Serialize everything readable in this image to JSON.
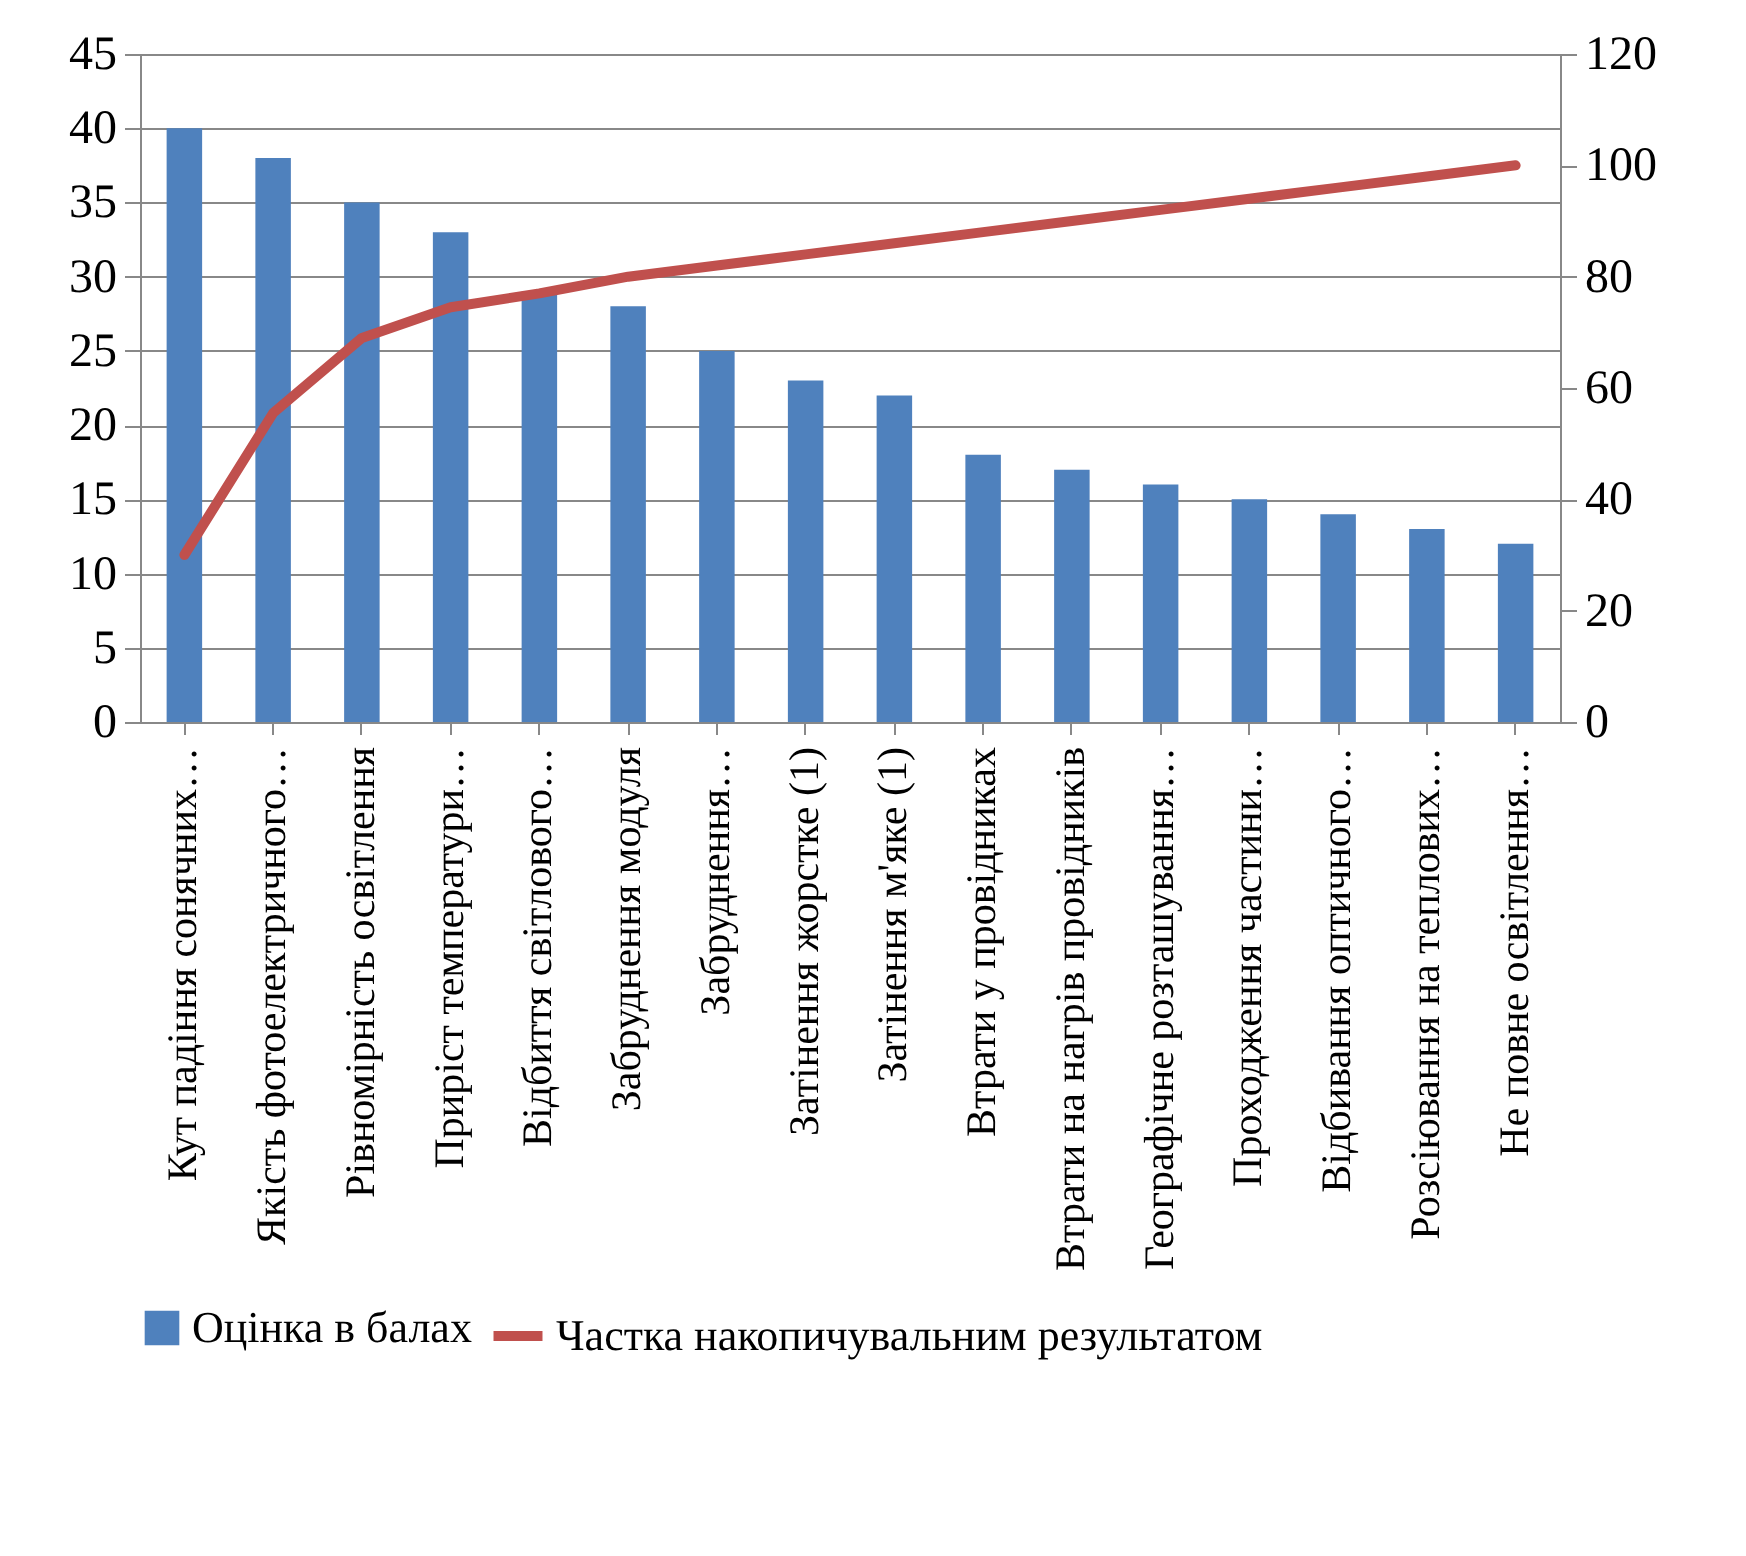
{
  "chart_data": {
    "type": "bar",
    "categories": [
      "Кут падіння сонячних…",
      "Якість фотоелектричного…",
      "Рівномірність освітлення",
      "Приріст температури…",
      "Відбиття світлового…",
      "Забруднення модуля",
      "Забруднення…",
      "Затінення жорстке (1)",
      "Затінення м'яке (1)",
      "Втрати у провідниках",
      "Втрати на нагрів провідників",
      "Географічне розташування…",
      "Проходження частини…",
      "Відбивання оптичного…",
      "Розсіювання на теплових…",
      "Не повне освітлення…"
    ],
    "series": [
      {
        "name": "Оцінка в балах",
        "color": "#4f81bd",
        "values": [
          40,
          38,
          35,
          33,
          29,
          28,
          25,
          23,
          22,
          18,
          17,
          16,
          15,
          14,
          13,
          12
        ]
      },
      {
        "name": "Частка накопичувальним результатом",
        "color": "#c0504d",
        "type": "line",
        "axis": "y2",
        "values": [
          30,
          55.5,
          69,
          74.5,
          77,
          80,
          82,
          84,
          86,
          88,
          90,
          92,
          94,
          96,
          98,
          100
        ]
      }
    ],
    "ylim": [
      0,
      45
    ],
    "yticks": [
      0,
      5,
      10,
      15,
      20,
      25,
      30,
      35,
      40,
      45
    ],
    "y2lim": [
      0,
      120
    ],
    "y2ticks": [
      0,
      20,
      40,
      60,
      80,
      100,
      120
    ],
    "grid": "y",
    "legend": "bottom"
  }
}
